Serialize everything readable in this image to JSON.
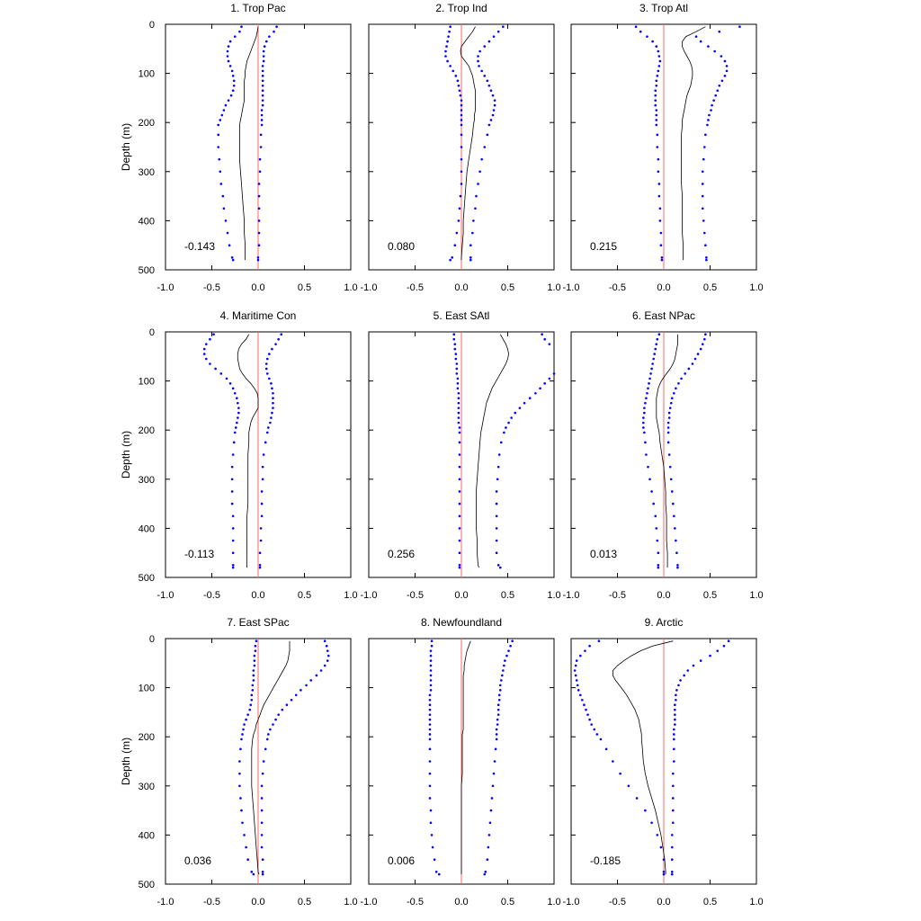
{
  "ylabel": "Depth (m)",
  "x_ticks": [
    "-1.0",
    "-0.5",
    "0.0",
    "0.5",
    "1.0"
  ],
  "y_ticks": [
    "0",
    "100",
    "200",
    "300",
    "400",
    "500"
  ],
  "colors": {
    "mean": "#000000",
    "bounds": "#0000ff",
    "zero": "#ff6666"
  },
  "chart_data": [
    {
      "type": "line",
      "title": "1. Trop Pac",
      "xlim": [
        -1,
        1
      ],
      "ylim": [
        500,
        0
      ],
      "value": "-0.143",
      "depth": [
        5,
        15,
        25,
        35,
        45,
        55,
        65,
        75,
        85,
        95,
        105,
        115,
        125,
        135,
        145,
        155,
        165,
        175,
        185,
        195,
        205,
        225,
        250,
        275,
        300,
        325,
        350,
        375,
        400,
        425,
        450,
        475,
        480
      ],
      "mean": [
        0,
        -0.01,
        -0.02,
        -0.04,
        -0.06,
        -0.08,
        -0.1,
        -0.12,
        -0.13,
        -0.14,
        -0.14,
        -0.15,
        -0.15,
        -0.15,
        -0.15,
        -0.15,
        -0.16,
        -0.17,
        -0.18,
        -0.19,
        -0.2,
        -0.2,
        -0.2,
        -0.2,
        -0.19,
        -0.18,
        -0.17,
        -0.16,
        -0.15,
        -0.15,
        -0.14,
        -0.14,
        -0.14
      ],
      "lower": [
        -0.18,
        -0.2,
        -0.25,
        -0.3,
        -0.32,
        -0.33,
        -0.33,
        -0.32,
        -0.3,
        -0.28,
        -0.27,
        -0.26,
        -0.26,
        -0.27,
        -0.29,
        -0.32,
        -0.35,
        -0.37,
        -0.39,
        -0.41,
        -0.43,
        -0.43,
        -0.43,
        -0.42,
        -0.41,
        -0.4,
        -0.38,
        -0.37,
        -0.35,
        -0.33,
        -0.31,
        -0.28,
        -0.27
      ],
      "upper": [
        0.2,
        0.17,
        0.12,
        0.09,
        0.07,
        0.06,
        0.06,
        0.06,
        0.05,
        0.05,
        0.05,
        0.05,
        0.05,
        0.05,
        0.05,
        0.05,
        0.05,
        0.04,
        0.04,
        0.04,
        0.04,
        0.03,
        0.03,
        0.02,
        0.02,
        0.01,
        0.01,
        0.01,
        0.01,
        0.01,
        0.01,
        0,
        0
      ]
    },
    {
      "type": "line",
      "title": "2. Trop Ind",
      "xlim": [
        -1,
        1
      ],
      "ylim": [
        500,
        0
      ],
      "value": "0.080",
      "depth": [
        5,
        15,
        25,
        35,
        45,
        55,
        65,
        75,
        85,
        95,
        105,
        115,
        125,
        135,
        145,
        155,
        165,
        175,
        185,
        195,
        205,
        225,
        250,
        275,
        300,
        325,
        350,
        375,
        400,
        425,
        450,
        475,
        480
      ],
      "mean": [
        0.15,
        0.12,
        0.08,
        0.04,
        0,
        -0.01,
        0,
        0.04,
        0.08,
        0.1,
        0.12,
        0.13,
        0.14,
        0.15,
        0.15,
        0.15,
        0.15,
        0.15,
        0.14,
        0.14,
        0.13,
        0.12,
        0.1,
        0.08,
        0.06,
        0.05,
        0.04,
        0.03,
        0.02,
        0.02,
        0.01,
        0,
        0
      ],
      "lower": [
        -0.12,
        -0.13,
        -0.14,
        -0.15,
        -0.16,
        -0.17,
        -0.17,
        -0.15,
        -0.12,
        -0.09,
        -0.06,
        -0.04,
        -0.03,
        -0.02,
        -0.01,
        0,
        0,
        0,
        0,
        0,
        0,
        0,
        0,
        0,
        0,
        0,
        -0.01,
        -0.02,
        -0.03,
        -0.05,
        -0.07,
        -0.1,
        -0.12
      ],
      "upper": [
        0.45,
        0.4,
        0.35,
        0.3,
        0.25,
        0.2,
        0.18,
        0.18,
        0.19,
        0.22,
        0.25,
        0.28,
        0.3,
        0.32,
        0.34,
        0.36,
        0.36,
        0.35,
        0.34,
        0.32,
        0.3,
        0.28,
        0.25,
        0.22,
        0.2,
        0.18,
        0.16,
        0.15,
        0.13,
        0.12,
        0.1,
        0.1,
        0.1
      ]
    },
    {
      "type": "line",
      "title": "3. Trop Atl",
      "xlim": [
        -1,
        1
      ],
      "ylim": [
        500,
        0
      ],
      "value": "0.215",
      "depth": [
        5,
        15,
        25,
        35,
        45,
        55,
        65,
        75,
        85,
        95,
        105,
        115,
        125,
        135,
        145,
        155,
        165,
        175,
        185,
        195,
        205,
        225,
        250,
        275,
        300,
        325,
        350,
        375,
        400,
        425,
        450,
        475,
        480
      ],
      "mean": [
        0.45,
        0.35,
        0.24,
        0.2,
        0.2,
        0.22,
        0.25,
        0.28,
        0.3,
        0.31,
        0.31,
        0.3,
        0.29,
        0.27,
        0.25,
        0.24,
        0.23,
        0.22,
        0.21,
        0.2,
        0.2,
        0.19,
        0.19,
        0.19,
        0.19,
        0.19,
        0.2,
        0.2,
        0.2,
        0.2,
        0.21,
        0.21,
        0.21
      ],
      "lower": [
        -0.3,
        -0.25,
        -0.18,
        -0.12,
        -0.08,
        -0.06,
        -0.05,
        -0.04,
        -0.05,
        -0.06,
        -0.07,
        -0.08,
        -0.08,
        -0.09,
        -0.09,
        -0.09,
        -0.09,
        -0.08,
        -0.08,
        -0.08,
        -0.08,
        -0.07,
        -0.07,
        -0.06,
        -0.06,
        -0.05,
        -0.05,
        -0.04,
        -0.04,
        -0.03,
        -0.03,
        -0.02,
        -0.02
      ],
      "upper": [
        0.82,
        0.6,
        0.35,
        0.4,
        0.48,
        0.55,
        0.62,
        0.66,
        0.68,
        0.68,
        0.66,
        0.63,
        0.6,
        0.58,
        0.56,
        0.54,
        0.52,
        0.51,
        0.49,
        0.48,
        0.47,
        0.45,
        0.44,
        0.43,
        0.42,
        0.42,
        0.42,
        0.42,
        0.43,
        0.44,
        0.45,
        0.46,
        0.46
      ]
    },
    {
      "type": "line",
      "title": "4. Maritime Con",
      "xlim": [
        -1,
        1
      ],
      "ylim": [
        500,
        0
      ],
      "value": "-0.113",
      "depth": [
        5,
        15,
        25,
        35,
        45,
        55,
        65,
        75,
        85,
        95,
        105,
        115,
        125,
        135,
        145,
        155,
        165,
        175,
        185,
        195,
        205,
        225,
        250,
        275,
        300,
        325,
        350,
        375,
        400,
        425,
        450,
        475,
        480
      ],
      "mean": [
        -0.1,
        -0.13,
        -0.18,
        -0.21,
        -0.22,
        -0.22,
        -0.21,
        -0.2,
        -0.17,
        -0.13,
        -0.08,
        -0.04,
        -0.01,
        0,
        0,
        0,
        -0.03,
        -0.06,
        -0.08,
        -0.09,
        -0.1,
        -0.1,
        -0.11,
        -0.11,
        -0.11,
        -0.11,
        -0.11,
        -0.12,
        -0.12,
        -0.12,
        -0.12,
        -0.12,
        -0.12
      ],
      "lower": [
        -0.48,
        -0.52,
        -0.56,
        -0.58,
        -0.58,
        -0.56,
        -0.52,
        -0.46,
        -0.4,
        -0.34,
        -0.3,
        -0.27,
        -0.25,
        -0.23,
        -0.22,
        -0.21,
        -0.21,
        -0.22,
        -0.23,
        -0.24,
        -0.25,
        -0.26,
        -0.27,
        -0.28,
        -0.28,
        -0.28,
        -0.28,
        -0.27,
        -0.27,
        -0.27,
        -0.27,
        -0.27,
        -0.27
      ],
      "upper": [
        0.25,
        0.22,
        0.19,
        0.15,
        0.12,
        0.1,
        0.09,
        0.09,
        0.1,
        0.12,
        0.14,
        0.15,
        0.16,
        0.16,
        0.16,
        0.16,
        0.15,
        0.14,
        0.13,
        0.11,
        0.1,
        0.08,
        0.06,
        0.05,
        0.05,
        0.04,
        0.04,
        0.04,
        0.03,
        0.03,
        0.02,
        0.02,
        0.02
      ]
    },
    {
      "type": "line",
      "title": "5. East SAtl",
      "xlim": [
        -1,
        1
      ],
      "ylim": [
        500,
        0
      ],
      "value": "0.256",
      "depth": [
        5,
        15,
        25,
        35,
        45,
        55,
        65,
        75,
        85,
        95,
        105,
        115,
        125,
        135,
        145,
        155,
        165,
        175,
        185,
        195,
        205,
        225,
        250,
        275,
        300,
        325,
        350,
        375,
        400,
        425,
        450,
        475,
        480
      ],
      "mean": [
        0.42,
        0.45,
        0.48,
        0.5,
        0.51,
        0.5,
        0.48,
        0.45,
        0.42,
        0.39,
        0.36,
        0.33,
        0.31,
        0.29,
        0.27,
        0.26,
        0.25,
        0.24,
        0.23,
        0.22,
        0.21,
        0.2,
        0.19,
        0.18,
        0.17,
        0.16,
        0.16,
        0.16,
        0.16,
        0.17,
        0.17,
        0.18,
        0.19
      ],
      "lower": [
        -0.08,
        -0.08,
        -0.07,
        -0.07,
        -0.06,
        -0.06,
        -0.05,
        -0.05,
        -0.05,
        -0.04,
        -0.04,
        -0.04,
        -0.03,
        -0.03,
        -0.03,
        -0.03,
        -0.03,
        -0.03,
        -0.03,
        -0.02,
        -0.02,
        -0.02,
        -0.02,
        -0.02,
        -0.02,
        -0.02,
        -0.02,
        -0.02,
        -0.02,
        -0.02,
        -0.02,
        -0.02,
        -0.02
      ],
      "upper": [
        0.87,
        0.9,
        0.95,
        1.02,
        1.1,
        1.12,
        1.1,
        1.05,
        1.0,
        0.95,
        0.9,
        0.85,
        0.8,
        0.74,
        0.68,
        0.63,
        0.58,
        0.54,
        0.51,
        0.48,
        0.46,
        0.43,
        0.41,
        0.4,
        0.39,
        0.38,
        0.38,
        0.38,
        0.38,
        0.38,
        0.38,
        0.4,
        0.42
      ]
    },
    {
      "type": "line",
      "title": "6. East NPac",
      "xlim": [
        -1,
        1
      ],
      "ylim": [
        500,
        0
      ],
      "value": "0.013",
      "depth": [
        5,
        15,
        25,
        35,
        45,
        55,
        65,
        75,
        85,
        95,
        105,
        115,
        125,
        135,
        145,
        155,
        165,
        175,
        185,
        195,
        205,
        225,
        250,
        275,
        300,
        325,
        350,
        375,
        400,
        425,
        450,
        475,
        480
      ],
      "mean": [
        0.15,
        0.15,
        0.15,
        0.14,
        0.13,
        0.12,
        0.1,
        0.07,
        0.03,
        -0.01,
        -0.04,
        -0.06,
        -0.07,
        -0.08,
        -0.08,
        -0.08,
        -0.08,
        -0.08,
        -0.07,
        -0.06,
        -0.05,
        -0.04,
        -0.02,
        0,
        0.01,
        0.02,
        0.02,
        0.03,
        0.03,
        0.03,
        0.04,
        0.04,
        0.04
      ],
      "lower": [
        -0.05,
        -0.07,
        -0.08,
        -0.09,
        -0.1,
        -0.11,
        -0.12,
        -0.13,
        -0.14,
        -0.15,
        -0.16,
        -0.17,
        -0.18,
        -0.19,
        -0.2,
        -0.21,
        -0.21,
        -0.22,
        -0.22,
        -0.22,
        -0.21,
        -0.2,
        -0.19,
        -0.17,
        -0.15,
        -0.13,
        -0.11,
        -0.09,
        -0.08,
        -0.07,
        -0.06,
        -0.06,
        -0.06
      ],
      "upper": [
        0.45,
        0.44,
        0.42,
        0.4,
        0.37,
        0.34,
        0.31,
        0.27,
        0.23,
        0.19,
        0.16,
        0.13,
        0.11,
        0.09,
        0.08,
        0.07,
        0.06,
        0.06,
        0.05,
        0.05,
        0.05,
        0.05,
        0.06,
        0.07,
        0.08,
        0.09,
        0.1,
        0.11,
        0.12,
        0.13,
        0.14,
        0.15,
        0.15
      ]
    },
    {
      "type": "line",
      "title": "7. East SPac",
      "xlim": [
        -1,
        1
      ],
      "ylim": [
        500,
        0
      ],
      "value": "0.036",
      "depth": [
        5,
        15,
        25,
        35,
        45,
        55,
        65,
        75,
        85,
        95,
        105,
        115,
        125,
        135,
        145,
        155,
        165,
        175,
        185,
        195,
        205,
        225,
        250,
        275,
        300,
        325,
        350,
        375,
        400,
        425,
        450,
        475,
        480
      ],
      "mean": [
        0.34,
        0.34,
        0.34,
        0.33,
        0.32,
        0.3,
        0.27,
        0.24,
        0.21,
        0.18,
        0.15,
        0.12,
        0.09,
        0.06,
        0.04,
        0.02,
        0,
        -0.02,
        -0.03,
        -0.05,
        -0.06,
        -0.07,
        -0.07,
        -0.07,
        -0.07,
        -0.06,
        -0.05,
        -0.04,
        -0.03,
        -0.02,
        -0.01,
        0,
        0.01
      ],
      "lower": [
        -0.02,
        -0.03,
        -0.03,
        -0.04,
        -0.04,
        -0.04,
        -0.05,
        -0.05,
        -0.05,
        -0.06,
        -0.06,
        -0.07,
        -0.07,
        -0.08,
        -0.09,
        -0.11,
        -0.13,
        -0.15,
        -0.16,
        -0.17,
        -0.18,
        -0.19,
        -0.2,
        -0.2,
        -0.2,
        -0.19,
        -0.18,
        -0.17,
        -0.15,
        -0.13,
        -0.11,
        -0.07,
        -0.05
      ],
      "upper": [
        0.72,
        0.74,
        0.75,
        0.76,
        0.75,
        0.72,
        0.68,
        0.63,
        0.57,
        0.52,
        0.46,
        0.41,
        0.36,
        0.31,
        0.26,
        0.22,
        0.19,
        0.16,
        0.13,
        0.11,
        0.1,
        0.08,
        0.06,
        0.05,
        0.04,
        0.04,
        0.04,
        0.04,
        0.04,
        0.04,
        0.05,
        0.05,
        0.05
      ]
    },
    {
      "type": "line",
      "title": "8. Newfoundland",
      "xlim": [
        -1,
        1
      ],
      "ylim": [
        500,
        0
      ],
      "value": "0.006",
      "depth": [
        5,
        15,
        25,
        35,
        45,
        55,
        65,
        75,
        85,
        95,
        105,
        115,
        125,
        135,
        145,
        155,
        165,
        175,
        185,
        195,
        205,
        225,
        250,
        275,
        300,
        325,
        350,
        375,
        400,
        425,
        450,
        475,
        480
      ],
      "mean": [
        0.1,
        0.08,
        0.06,
        0.05,
        0.04,
        0.03,
        0.03,
        0.02,
        0.02,
        0.02,
        0.02,
        0.02,
        0.02,
        0.02,
        0.02,
        0.02,
        0.02,
        0.02,
        0.02,
        0.01,
        0.01,
        0.01,
        0.01,
        0.01,
        0,
        0,
        0,
        0,
        0,
        0,
        0,
        0,
        0
      ],
      "lower": [
        -0.32,
        -0.32,
        -0.33,
        -0.33,
        -0.33,
        -0.33,
        -0.33,
        -0.33,
        -0.33,
        -0.33,
        -0.33,
        -0.34,
        -0.34,
        -0.34,
        -0.34,
        -0.34,
        -0.34,
        -0.34,
        -0.34,
        -0.34,
        -0.34,
        -0.34,
        -0.34,
        -0.34,
        -0.34,
        -0.34,
        -0.33,
        -0.33,
        -0.32,
        -0.31,
        -0.29,
        -0.27,
        -0.24
      ],
      "upper": [
        0.55,
        0.53,
        0.51,
        0.49,
        0.47,
        0.46,
        0.45,
        0.44,
        0.43,
        0.42,
        0.42,
        0.41,
        0.41,
        0.4,
        0.4,
        0.4,
        0.39,
        0.39,
        0.38,
        0.38,
        0.38,
        0.37,
        0.36,
        0.35,
        0.34,
        0.33,
        0.32,
        0.31,
        0.3,
        0.29,
        0.28,
        0.26,
        0.25
      ]
    },
    {
      "type": "line",
      "title": "9. Arctic",
      "xlim": [
        -1,
        1
      ],
      "ylim": [
        500,
        0
      ],
      "value": "-0.185",
      "depth": [
        5,
        15,
        25,
        35,
        45,
        55,
        65,
        75,
        85,
        95,
        105,
        115,
        125,
        135,
        145,
        155,
        165,
        175,
        185,
        195,
        205,
        225,
        250,
        275,
        300,
        325,
        350,
        375,
        400,
        425,
        450,
        475,
        480
      ],
      "mean": [
        0.1,
        -0.12,
        -0.25,
        -0.35,
        -0.43,
        -0.5,
        -0.55,
        -0.55,
        -0.52,
        -0.48,
        -0.44,
        -0.4,
        -0.37,
        -0.34,
        -0.31,
        -0.29,
        -0.27,
        -0.26,
        -0.25,
        -0.24,
        -0.24,
        -0.23,
        -0.22,
        -0.2,
        -0.17,
        -0.13,
        -0.09,
        -0.06,
        -0.03,
        -0.01,
        0.01,
        0.02,
        0.02
      ],
      "lower": [
        -0.7,
        -0.8,
        -0.85,
        -0.9,
        -0.94,
        -0.95,
        -0.96,
        -0.95,
        -0.94,
        -0.93,
        -0.92,
        -0.9,
        -0.88,
        -0.86,
        -0.84,
        -0.82,
        -0.8,
        -0.78,
        -0.75,
        -0.72,
        -0.68,
        -0.62,
        -0.55,
        -0.47,
        -0.38,
        -0.29,
        -0.2,
        -0.13,
        -0.07,
        -0.03,
        0,
        0,
        0
      ],
      "upper": [
        0.7,
        0.65,
        0.58,
        0.5,
        0.4,
        0.32,
        0.26,
        0.22,
        0.18,
        0.16,
        0.14,
        0.13,
        0.13,
        0.12,
        0.12,
        0.12,
        0.12,
        0.12,
        0.11,
        0.11,
        0.11,
        0.11,
        0.11,
        0.1,
        0.1,
        0.1,
        0.1,
        0.1,
        0.09,
        0.09,
        0.09,
        0.09,
        0.09
      ]
    }
  ]
}
